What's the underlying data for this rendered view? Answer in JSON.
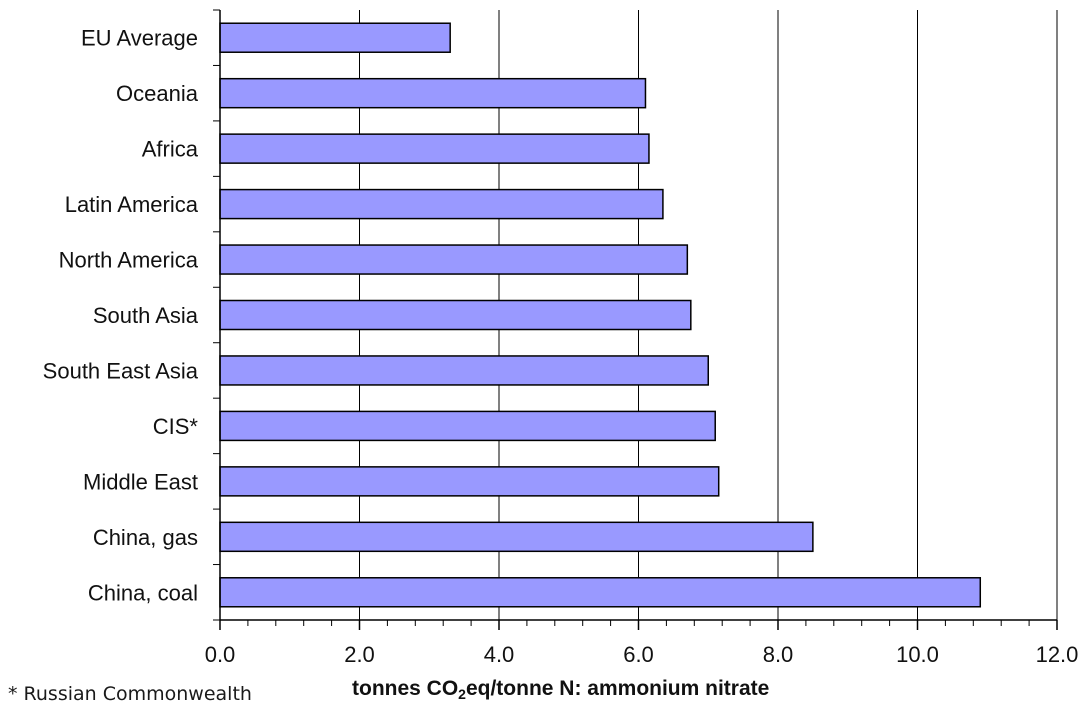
{
  "chart_data": {
    "type": "bar",
    "orientation": "horizontal",
    "categories": [
      "EU Average",
      "Oceania",
      "Africa",
      "Latin America",
      "North America",
      "South Asia",
      "South East Asia",
      "CIS*",
      "Middle East",
      "China, gas",
      "China, coal"
    ],
    "values": [
      3.3,
      6.1,
      6.15,
      6.35,
      6.7,
      6.75,
      7.0,
      7.1,
      7.15,
      8.5,
      10.9
    ],
    "xlim": [
      0,
      12.0
    ],
    "x_ticks": [
      "0.0",
      "2.0",
      "4.0",
      "6.0",
      "8.0",
      "10.0",
      "12.0"
    ],
    "xlabel": {
      "prefix": "tonnes CO",
      "subscript": "2",
      "suffix": "eq/tonne N: ammonium nitrate"
    },
    "ylabel": "",
    "title": "",
    "grid": "vertical",
    "bar_color": "#9999ff",
    "bar_edge_color": "#000000",
    "footnote": "* Russian Commonwealth"
  }
}
